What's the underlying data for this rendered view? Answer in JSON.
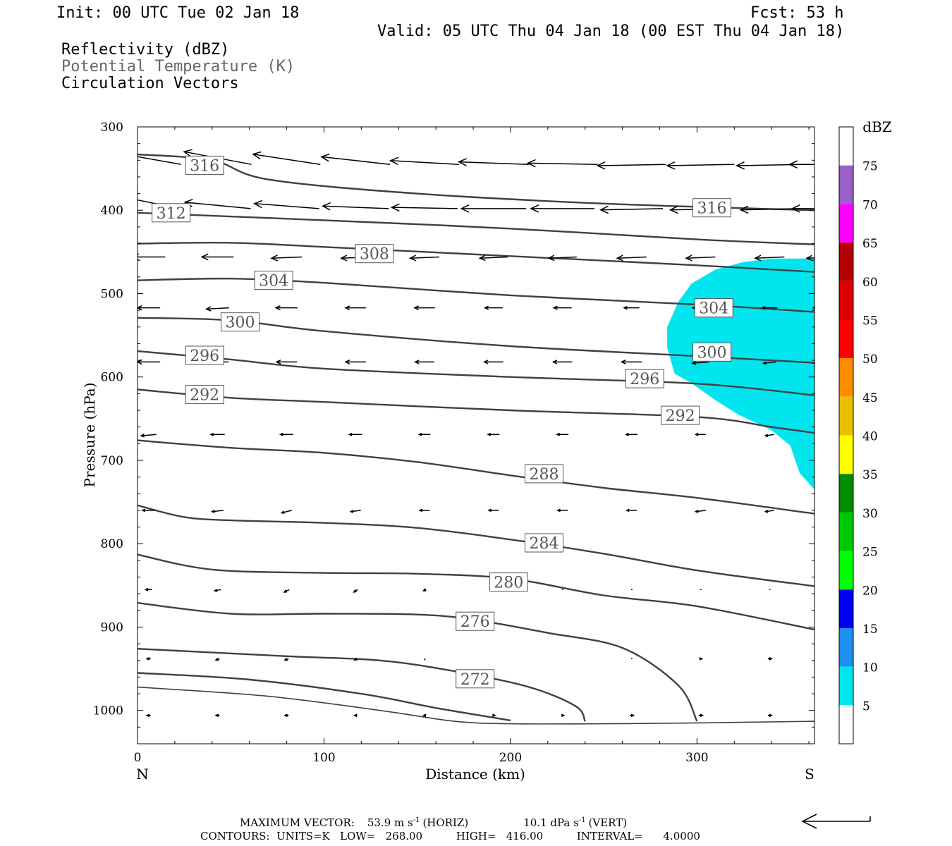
{
  "header": {
    "init": "Init: 00 UTC Tue 02 Jan 18",
    "fcst": "Fcst:   53 h",
    "valid": "Valid: 05 UTC Thu 04 Jan 18 (00 EST Thu 04 Jan 18)",
    "field1": "Reflectivity (dBZ)",
    "field2": "Potential Temperature (K)",
    "field3": "Circulation Vectors"
  },
  "colors": {
    "field2_text": "#666666",
    "contour": "#404040",
    "echo": "#00e5ee"
  },
  "chart_data": {
    "type": "cross-section",
    "xlabel": "Distance (km)",
    "ylabel": "Pressure (hPa)",
    "xlim": [
      0,
      363
    ],
    "ylim": [
      1040,
      300
    ],
    "x_ticks": [
      "0",
      "100",
      "200",
      "300"
    ],
    "x_tick_values": [
      0,
      100,
      200,
      300
    ],
    "y_ticks": [
      "300",
      "400",
      "500",
      "600",
      "700",
      "800",
      "900",
      "1000"
    ],
    "y_tick_values": [
      300,
      400,
      500,
      600,
      700,
      800,
      900,
      1000
    ],
    "x_end_labels": {
      "left": "N",
      "right": "S"
    },
    "colorbar": {
      "unit": "dBZ",
      "labels": [
        "75",
        "70",
        "65",
        "60",
        "55",
        "50",
        "45",
        "40",
        "35",
        "30",
        "25",
        "20",
        "15",
        "10",
        "5"
      ],
      "levels": [
        5,
        10,
        15,
        20,
        25,
        30,
        35,
        40,
        45,
        50,
        55,
        60,
        65,
        70,
        75
      ],
      "colors": [
        "#00e5ee",
        "#1e90ee",
        "#0000ee",
        "#00ff00",
        "#00c800",
        "#008b00",
        "#ffff00",
        "#e8c000",
        "#ff8c00",
        "#ff0000",
        "#dc0000",
        "#b40000",
        "#ff00ff",
        "#9a5fc9"
      ]
    },
    "contours": [
      {
        "value": 316,
        "label": "316",
        "x": [
          0,
          40,
          70,
          150,
          250,
          363
        ],
        "y": [
          333,
          340,
          363,
          380,
          392,
          400
        ]
      },
      {
        "value": 312,
        "label": "312",
        "x": [
          0,
          100,
          200,
          300,
          363
        ],
        "y": [
          403,
          412,
          422,
          435,
          441
        ]
      },
      {
        "value": 308,
        "label": "308",
        "x": [
          0,
          50,
          100,
          200,
          300,
          363
        ],
        "y": [
          440,
          439,
          444,
          455,
          466,
          474
        ]
      },
      {
        "value": 304,
        "label": "304",
        "x": [
          0,
          50,
          100,
          200,
          300,
          363
        ],
        "y": [
          484,
          482,
          487,
          502,
          513,
          522
        ]
      },
      {
        "value": 300,
        "label": "300",
        "x": [
          0,
          50,
          100,
          200,
          300,
          363
        ],
        "y": [
          529,
          532,
          545,
          563,
          575,
          583
        ]
      },
      {
        "value": 296,
        "label": "296",
        "x": [
          0,
          50,
          100,
          200,
          300,
          363
        ],
        "y": [
          569,
          579,
          590,
          600,
          608,
          622
        ]
      },
      {
        "value": 292,
        "label": "292",
        "x": [
          0,
          50,
          100,
          200,
          300,
          340,
          363
        ],
        "y": [
          615,
          625,
          630,
          640,
          648,
          660,
          667
        ]
      },
      {
        "value": 288,
        "label": "288",
        "x": [
          0,
          50,
          100,
          150,
          200,
          250,
          300,
          363
        ],
        "y": [
          676,
          685,
          691,
          702,
          718,
          733,
          745,
          764
        ]
      },
      {
        "value": 284,
        "label": "284",
        "x": [
          0,
          25,
          50,
          100,
          150,
          200,
          250,
          300,
          363
        ],
        "y": [
          754,
          768,
          772,
          775,
          781,
          795,
          812,
          832,
          851
        ]
      },
      {
        "value": 280,
        "label": "280",
        "x": [
          0,
          40,
          100,
          150,
          200,
          250,
          300,
          363
        ],
        "y": [
          813,
          831,
          835,
          836,
          842,
          862,
          875,
          903
        ]
      },
      {
        "value": 276,
        "label": "276",
        "x": [
          0,
          50,
          100,
          150,
          180,
          220,
          260,
          290,
          300
        ],
        "y": [
          871,
          884,
          884,
          885,
          891,
          907,
          925,
          970,
          1013
        ]
      },
      {
        "value": 272,
        "label": "272",
        "x": [
          0,
          80,
          130,
          170,
          210,
          235,
          240
        ],
        "y": [
          926,
          935,
          940,
          953,
          972,
          995,
          1013
        ]
      },
      {
        "value": 268,
        "label": "",
        "x": [
          0,
          60,
          120,
          160,
          200
        ],
        "y": [
          955,
          963,
          980,
          997,
          1012
        ]
      },
      {
        "value": 0,
        "label": "",
        "x": [
          0,
          70,
          130,
          170,
          200,
          250,
          300,
          363
        ],
        "y": [
          972,
          983,
          1000,
          1013,
          1016,
          1016,
          1015,
          1013
        ]
      }
    ],
    "contour_labels": [
      {
        "text": "316",
        "x": 36,
        "p": 346
      },
      {
        "text": "316",
        "x": 308,
        "p": 397
      },
      {
        "text": "312",
        "x": 18,
        "p": 403
      },
      {
        "text": "308",
        "x": 127,
        "p": 452
      },
      {
        "text": "304",
        "x": 73,
        "p": 484
      },
      {
        "text": "304",
        "x": 309,
        "p": 517
      },
      {
        "text": "300",
        "x": 55,
        "p": 534
      },
      {
        "text": "300",
        "x": 308,
        "p": 570
      },
      {
        "text": "296",
        "x": 36,
        "p": 574
      },
      {
        "text": "296",
        "x": 272,
        "p": 602
      },
      {
        "text": "292",
        "x": 36,
        "p": 621
      },
      {
        "text": "292",
        "x": 291,
        "p": 646
      },
      {
        "text": "288",
        "x": 218,
        "p": 716
      },
      {
        "text": "284",
        "x": 218,
        "p": 799
      },
      {
        "text": "280",
        "x": 199,
        "p": 846
      },
      {
        "text": "276",
        "x": 181,
        "p": 893
      },
      {
        "text": "272",
        "x": 181,
        "p": 962
      }
    ],
    "reflectivity_regions": [
      {
        "dbz": 5,
        "x": [
          363,
          340,
          325,
          310,
          297,
          290,
          284,
          284,
          288,
          296,
          310,
          322,
          340,
          350,
          355,
          363
        ],
        "y": [
          458,
          458,
          462,
          471,
          488,
          510,
          540,
          565,
          596,
          606,
          628,
          645,
          664,
          682,
          715,
          735
        ]
      }
    ],
    "vectors": {
      "columns_x": [
        3,
        40,
        77,
        114,
        151,
        188,
        225,
        262,
        299,
        336,
        363
      ],
      "rows": [
        {
          "p": 345,
          "dx": [
            -5.1,
            -5.3,
            -5.3,
            -5.4,
            -5.4,
            -5.5,
            -5.5,
            -5.4,
            -5.3,
            -5.2,
            -4.8
          ],
          "dy": [
            -0.9,
            -1.0,
            -0.8,
            -0.6,
            -0.3,
            -0.2,
            -0.1,
            0.1,
            0.1,
            0.1,
            0.0
          ]
        },
        {
          "p": 398,
          "dx": [
            -4.9,
            -5.2,
            -5.1,
            -5.2,
            -5.2,
            -5.1,
            -5.0,
            -4.9,
            -4.8,
            -4.6,
            -4.4
          ],
          "dy": [
            -1.0,
            -0.5,
            -0.4,
            -0.2,
            -0.1,
            0.0,
            0.0,
            0.1,
            0.1,
            0.1,
            0.0
          ]
        },
        {
          "p": 456,
          "dx": [
            -2.6,
            -2.5,
            -2.4,
            -2.3,
            -2.3,
            -2.2,
            -2.2,
            -2.3,
            -2.3,
            -2.3,
            -2.1
          ],
          "dy": [
            0.0,
            0.0,
            0.1,
            0.1,
            0.1,
            0.1,
            0.1,
            0.1,
            0.1,
            0.1,
            0.1
          ]
        },
        {
          "p": 517,
          "dx": [
            -1.8,
            -1.8,
            -1.7,
            -1.6,
            -1.6,
            -1.4,
            -1.4,
            -1.2,
            -1.3,
            -1.2,
            -1.1
          ],
          "dy": [
            0.0,
            0.1,
            0.0,
            0.0,
            0.0,
            0.0,
            0.0,
            0.0,
            0.0,
            0.0,
            0.0
          ]
        },
        {
          "p": 582,
          "dx": [
            -1.8,
            -1.7,
            -1.6,
            -1.6,
            -1.5,
            -1.5,
            -1.5,
            -1.6,
            -1.3,
            -1.0,
            -1.0
          ],
          "dy": [
            0.0,
            0.0,
            0.0,
            0.0,
            0.0,
            0.0,
            0.0,
            0.0,
            0.1,
            0.1,
            0.1
          ]
        },
        {
          "p": 669,
          "dx": [
            -1.2,
            -1.1,
            -1.0,
            -1.0,
            -0.9,
            -0.9,
            -0.9,
            -0.9,
            -0.8,
            -0.7,
            -0.6
          ],
          "dy": [
            0.1,
            0.0,
            0.0,
            0.0,
            0.0,
            0.0,
            0.0,
            0.0,
            0.0,
            0.1,
            0.1
          ]
        },
        {
          "p": 760,
          "dx": [
            -1.0,
            -0.9,
            -0.8,
            -0.8,
            -0.8,
            -0.8,
            -0.8,
            -0.8,
            -0.8,
            -0.7,
            -0.6
          ],
          "dy": [
            0.0,
            0.1,
            0.2,
            0.1,
            0.0,
            0.0,
            0.0,
            0.0,
            0.1,
            0.1,
            0.1
          ]
        },
        {
          "p": 855,
          "dx": [
            -0.5,
            -0.5,
            -0.4,
            -0.3,
            -0.2,
            -0.1,
            0.1,
            0.1,
            0.1,
            0.1,
            0.1
          ],
          "dy": [
            0.0,
            0.1,
            0.2,
            0.2,
            0.1,
            0.0,
            0.0,
            0.0,
            0.0,
            0.0,
            0.0
          ]
        },
        {
          "p": 938,
          "dx": [
            -0.3,
            -0.3,
            -0.3,
            -0.2,
            -0.1,
            0.0,
            0.0,
            0.1,
            0.2,
            0.3,
            0.3
          ],
          "dy": [
            0.0,
            0.1,
            0.1,
            0.1,
            0.1,
            0.0,
            0.0,
            0.0,
            0.0,
            0.0,
            0.0
          ]
        },
        {
          "p": 1006,
          "dx": [
            -0.3,
            -0.3,
            -0.3,
            -0.2,
            -0.2,
            0.2,
            0.2,
            0.3,
            0.3,
            0.3,
            0.3
          ],
          "dy": [
            0.0,
            0.0,
            0.0,
            0.0,
            0.0,
            0.0,
            0.0,
            0.0,
            0.0,
            0.0,
            0.0
          ]
        }
      ]
    }
  },
  "footer": {
    "max_vector_label": "MAXIMUM VECTOR:",
    "horiz_value": "53.9 m s",
    "horiz_exp": "-1",
    "horiz_tag": "(HORIZ)",
    "vert_value": "10.1 dPa s",
    "vert_exp": "-1",
    "vert_tag": "(VERT)",
    "contours_line": "CONTOURS:  UNITS=K   LOW=   268.00          HIGH=   416.00          INTERVAL=      4.0000"
  }
}
